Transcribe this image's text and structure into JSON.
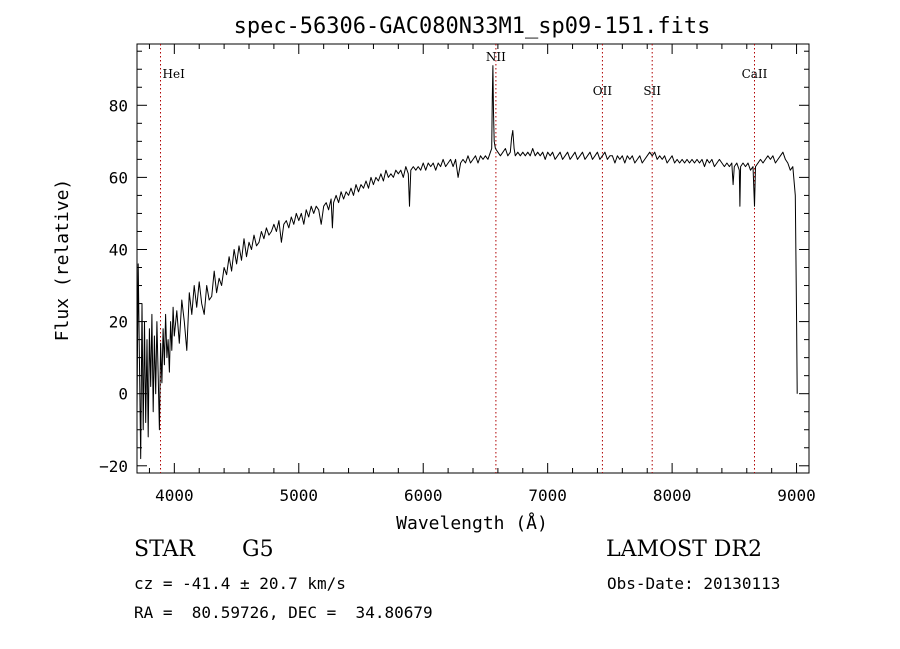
{
  "chart_data": {
    "type": "line",
    "title": "spec-56306-GAC080N33M1_sp09-151.fits",
    "xlabel": "Wavelength (Å)",
    "ylabel": "Flux (relative)",
    "xlim": [
      3700,
      9100
    ],
    "ylim": [
      -22,
      97
    ],
    "xticks": [
      4000,
      5000,
      6000,
      7000,
      8000,
      9000
    ],
    "yticks": [
      -20,
      0,
      20,
      40,
      60,
      80
    ],
    "grid": false,
    "series": [
      {
        "values": [
          [
            3700,
            -5
          ],
          [
            3710,
            36
          ],
          [
            3720,
            8
          ],
          [
            3730,
            -18
          ],
          [
            3740,
            25
          ],
          [
            3750,
            -10
          ],
          [
            3760,
            20
          ],
          [
            3770,
            -8
          ],
          [
            3780,
            15
          ],
          [
            3790,
            -12
          ],
          [
            3800,
            18
          ],
          [
            3810,
            2
          ],
          [
            3820,
            22
          ],
          [
            3830,
            -5
          ],
          [
            3840,
            16
          ],
          [
            3850,
            0
          ],
          [
            3860,
            20
          ],
          [
            3870,
            5
          ],
          [
            3880,
            -10
          ],
          [
            3890,
            14
          ],
          [
            3900,
            3
          ],
          [
            3910,
            18
          ],
          [
            3920,
            8
          ],
          [
            3930,
            22
          ],
          [
            3940,
            10
          ],
          [
            3950,
            15
          ],
          [
            3960,
            6
          ],
          [
            3970,
            20
          ],
          [
            3980,
            12
          ],
          [
            3990,
            24
          ],
          [
            4000,
            16
          ],
          [
            4020,
            23
          ],
          [
            4040,
            14
          ],
          [
            4060,
            26
          ],
          [
            4080,
            20
          ],
          [
            4100,
            12
          ],
          [
            4120,
            28
          ],
          [
            4140,
            22
          ],
          [
            4160,
            30
          ],
          [
            4180,
            24
          ],
          [
            4200,
            31
          ],
          [
            4220,
            25
          ],
          [
            4240,
            22
          ],
          [
            4260,
            30
          ],
          [
            4280,
            26
          ],
          [
            4300,
            27
          ],
          [
            4320,
            34
          ],
          [
            4340,
            28
          ],
          [
            4360,
            32
          ],
          [
            4380,
            30
          ],
          [
            4400,
            35
          ],
          [
            4420,
            33
          ],
          [
            4440,
            38
          ],
          [
            4460,
            34
          ],
          [
            4480,
            40
          ],
          [
            4500,
            36
          ],
          [
            4520,
            41
          ],
          [
            4540,
            37
          ],
          [
            4560,
            43
          ],
          [
            4580,
            38
          ],
          [
            4600,
            42
          ],
          [
            4620,
            40
          ],
          [
            4640,
            44
          ],
          [
            4660,
            41
          ],
          [
            4680,
            42
          ],
          [
            4700,
            45
          ],
          [
            4720,
            43
          ],
          [
            4740,
            46
          ],
          [
            4760,
            44
          ],
          [
            4780,
            45
          ],
          [
            4800,
            47
          ],
          [
            4820,
            45
          ],
          [
            4840,
            48
          ],
          [
            4860,
            42
          ],
          [
            4880,
            47
          ],
          [
            4900,
            48
          ],
          [
            4920,
            46
          ],
          [
            4940,
            49
          ],
          [
            4960,
            47
          ],
          [
            4980,
            50
          ],
          [
            5000,
            48
          ],
          [
            5020,
            50
          ],
          [
            5040,
            47
          ],
          [
            5060,
            51
          ],
          [
            5080,
            49
          ],
          [
            5100,
            52
          ],
          [
            5120,
            50
          ],
          [
            5140,
            52
          ],
          [
            5160,
            51
          ],
          [
            5180,
            47
          ],
          [
            5200,
            52
          ],
          [
            5220,
            53
          ],
          [
            5240,
            51
          ],
          [
            5260,
            54
          ],
          [
            5270,
            46
          ],
          [
            5280,
            53
          ],
          [
            5300,
            55
          ],
          [
            5320,
            53
          ],
          [
            5340,
            56
          ],
          [
            5360,
            54
          ],
          [
            5380,
            56
          ],
          [
            5400,
            55
          ],
          [
            5420,
            57
          ],
          [
            5440,
            55
          ],
          [
            5460,
            58
          ],
          [
            5480,
            56
          ],
          [
            5500,
            58
          ],
          [
            5520,
            57
          ],
          [
            5540,
            59
          ],
          [
            5560,
            57
          ],
          [
            5580,
            60
          ],
          [
            5600,
            58
          ],
          [
            5620,
            60
          ],
          [
            5640,
            59
          ],
          [
            5660,
            61
          ],
          [
            5680,
            59
          ],
          [
            5700,
            62
          ],
          [
            5720,
            60
          ],
          [
            5740,
            61
          ],
          [
            5760,
            60
          ],
          [
            5780,
            62
          ],
          [
            5800,
            61
          ],
          [
            5820,
            62
          ],
          [
            5840,
            60
          ],
          [
            5860,
            63
          ],
          [
            5880,
            61
          ],
          [
            5890,
            52
          ],
          [
            5900,
            62
          ],
          [
            5920,
            63
          ],
          [
            5940,
            62
          ],
          [
            5960,
            63
          ],
          [
            5980,
            62
          ],
          [
            6000,
            64
          ],
          [
            6020,
            62
          ],
          [
            6040,
            64
          ],
          [
            6060,
            63
          ],
          [
            6080,
            64
          ],
          [
            6100,
            62
          ],
          [
            6120,
            64
          ],
          [
            6140,
            63
          ],
          [
            6160,
            65
          ],
          [
            6180,
            63
          ],
          [
            6200,
            64
          ],
          [
            6220,
            65
          ],
          [
            6240,
            63
          ],
          [
            6260,
            65
          ],
          [
            6280,
            60
          ],
          [
            6300,
            64
          ],
          [
            6320,
            65
          ],
          [
            6340,
            64
          ],
          [
            6360,
            66
          ],
          [
            6380,
            64
          ],
          [
            6400,
            65
          ],
          [
            6420,
            66
          ],
          [
            6440,
            64
          ],
          [
            6460,
            66
          ],
          [
            6480,
            65
          ],
          [
            6500,
            66
          ],
          [
            6520,
            65
          ],
          [
            6540,
            67
          ],
          [
            6550,
            68
          ],
          [
            6555,
            82
          ],
          [
            6560,
            91
          ],
          [
            6565,
            78
          ],
          [
            6570,
            70
          ],
          [
            6580,
            68
          ],
          [
            6600,
            67
          ],
          [
            6620,
            66
          ],
          [
            6640,
            67
          ],
          [
            6660,
            68
          ],
          [
            6680,
            66
          ],
          [
            6700,
            67
          ],
          [
            6710,
            71
          ],
          [
            6720,
            73
          ],
          [
            6730,
            68
          ],
          [
            6740,
            66
          ],
          [
            6760,
            67
          ],
          [
            6780,
            66
          ],
          [
            6800,
            67
          ],
          [
            6820,
            66
          ],
          [
            6840,
            67
          ],
          [
            6860,
            66
          ],
          [
            6880,
            68
          ],
          [
            6900,
            66
          ],
          [
            6920,
            67
          ],
          [
            6940,
            66
          ],
          [
            6960,
            67
          ],
          [
            6980,
            65
          ],
          [
            7000,
            67
          ],
          [
            7020,
            66
          ],
          [
            7040,
            67
          ],
          [
            7060,
            65
          ],
          [
            7080,
            66
          ],
          [
            7100,
            67
          ],
          [
            7120,
            65
          ],
          [
            7140,
            66
          ],
          [
            7160,
            67
          ],
          [
            7180,
            65
          ],
          [
            7200,
            66
          ],
          [
            7220,
            67
          ],
          [
            7240,
            65
          ],
          [
            7260,
            66
          ],
          [
            7280,
            67
          ],
          [
            7300,
            65
          ],
          [
            7320,
            66
          ],
          [
            7340,
            67
          ],
          [
            7360,
            65
          ],
          [
            7380,
            66
          ],
          [
            7400,
            67
          ],
          [
            7420,
            65
          ],
          [
            7440,
            66
          ],
          [
            7460,
            67
          ],
          [
            7480,
            65
          ],
          [
            7500,
            66
          ],
          [
            7520,
            66
          ],
          [
            7540,
            64
          ],
          [
            7560,
            66
          ],
          [
            7580,
            65
          ],
          [
            7600,
            66
          ],
          [
            7620,
            64
          ],
          [
            7640,
            66
          ],
          [
            7660,
            65
          ],
          [
            7680,
            66
          ],
          [
            7700,
            64
          ],
          [
            7720,
            65
          ],
          [
            7740,
            66
          ],
          [
            7760,
            64
          ],
          [
            7780,
            65
          ],
          [
            7800,
            66
          ],
          [
            7820,
            67
          ],
          [
            7840,
            66
          ],
          [
            7860,
            67
          ],
          [
            7880,
            65
          ],
          [
            7900,
            66
          ],
          [
            7920,
            65
          ],
          [
            7940,
            66
          ],
          [
            7960,
            64
          ],
          [
            7980,
            65
          ],
          [
            8000,
            66
          ],
          [
            8020,
            64
          ],
          [
            8040,
            65
          ],
          [
            8060,
            64
          ],
          [
            8080,
            65
          ],
          [
            8100,
            64
          ],
          [
            8120,
            65
          ],
          [
            8140,
            64
          ],
          [
            8160,
            65
          ],
          [
            8180,
            64
          ],
          [
            8200,
            65
          ],
          [
            8220,
            64
          ],
          [
            8240,
            65
          ],
          [
            8260,
            63
          ],
          [
            8280,
            65
          ],
          [
            8300,
            64
          ],
          [
            8320,
            65
          ],
          [
            8340,
            63
          ],
          [
            8360,
            64
          ],
          [
            8380,
            65
          ],
          [
            8400,
            64
          ],
          [
            8420,
            63
          ],
          [
            8440,
            64
          ],
          [
            8460,
            63
          ],
          [
            8480,
            64
          ],
          [
            8490,
            58
          ],
          [
            8500,
            63
          ],
          [
            8520,
            64
          ],
          [
            8540,
            62
          ],
          [
            8545,
            52
          ],
          [
            8550,
            63
          ],
          [
            8570,
            64
          ],
          [
            8590,
            63
          ],
          [
            8610,
            64
          ],
          [
            8630,
            62
          ],
          [
            8650,
            63
          ],
          [
            8662,
            52
          ],
          [
            8670,
            63
          ],
          [
            8690,
            64
          ],
          [
            8710,
            65
          ],
          [
            8730,
            64
          ],
          [
            8750,
            65
          ],
          [
            8770,
            66
          ],
          [
            8790,
            65
          ],
          [
            8810,
            66
          ],
          [
            8830,
            64
          ],
          [
            8850,
            65
          ],
          [
            8870,
            66
          ],
          [
            8890,
            67
          ],
          [
            8910,
            65
          ],
          [
            8930,
            64
          ],
          [
            8950,
            62
          ],
          [
            8970,
            63
          ],
          [
            8990,
            55
          ],
          [
            9000,
            20
          ],
          [
            9005,
            0
          ]
        ]
      }
    ],
    "lines": [
      {
        "label": "HeI",
        "x": 3889
      },
      {
        "label": "NII",
        "x": 6584
      },
      {
        "label": "OII",
        "x": 7440
      },
      {
        "label": "SII",
        "x": 7840
      },
      {
        "label": "CaII",
        "x": 8662
      }
    ]
  },
  "info": {
    "object_class": "STAR",
    "subclass": "G5",
    "survey": "LAMOST DR2",
    "redshift": "cz = -41.4 ± 20.7 km/s",
    "obs_date": "Obs-Date: 20130113",
    "coordinates": "RA =  80.59726, DEC =  34.80679"
  }
}
